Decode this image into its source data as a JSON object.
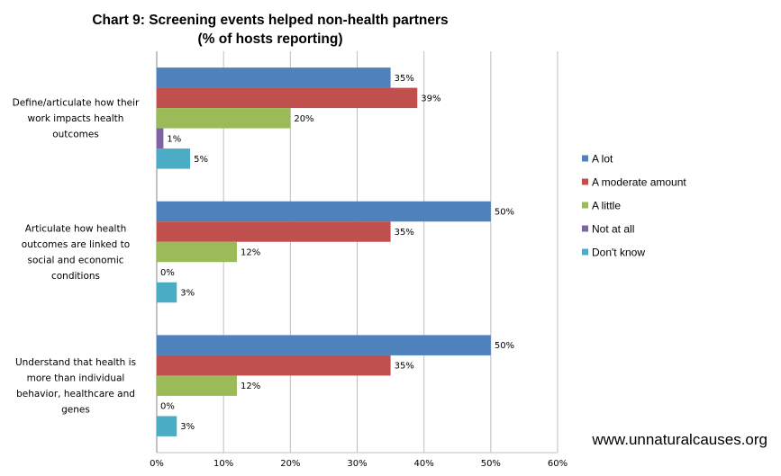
{
  "chart_data": {
    "type": "bar",
    "orientation": "horizontal",
    "title": "Chart 9: Screening events helped non-health partners",
    "subtitle": "(% of hosts reporting)",
    "categories": [
      "Define/articulate how their work impacts health outcomes",
      "Articulate how health outcomes are linked to social and economic conditions",
      "Understand that health is more than individual behavior, healthcare and genes"
    ],
    "category_lines": [
      [
        "Define/articulate how their",
        "work impacts health",
        "outcomes"
      ],
      [
        "Articulate how health",
        "outcomes are linked to",
        "social and economic",
        "conditions"
      ],
      [
        "Understand that health is",
        "more than individual",
        "behavior, healthcare and",
        "genes"
      ]
    ],
    "series": [
      {
        "name": "A lot",
        "color": "#4F81BD",
        "values": [
          35,
          50,
          50
        ],
        "labels": [
          "35%",
          "50%",
          "50%"
        ]
      },
      {
        "name": "A moderate amount",
        "color": "#C0504D",
        "values": [
          39,
          35,
          35
        ],
        "labels": [
          "39%",
          "35%",
          "35%"
        ]
      },
      {
        "name": "A little",
        "color": "#9BBB59",
        "values": [
          20,
          12,
          12
        ],
        "labels": [
          "20%",
          "12%",
          "12%"
        ]
      },
      {
        "name": "Not at all",
        "color": "#8064A2",
        "values": [
          1,
          0,
          0
        ],
        "labels": [
          "1%",
          "0%",
          "0%"
        ]
      },
      {
        "name": "Don't know",
        "color": "#4BACC6",
        "values": [
          5,
          3,
          3
        ],
        "labels": [
          "5%",
          "3%",
          "3%"
        ]
      }
    ],
    "xlim": [
      0,
      60
    ],
    "xticks": [
      0,
      10,
      20,
      30,
      40,
      50,
      60
    ],
    "xtick_labels": [
      "0%",
      "10%",
      "20%",
      "30%",
      "40%",
      "50%",
      "60%"
    ],
    "xlabel": "",
    "ylabel": "",
    "grid": true,
    "legend_position": "right"
  },
  "source": "www.unnaturalcauses.org"
}
